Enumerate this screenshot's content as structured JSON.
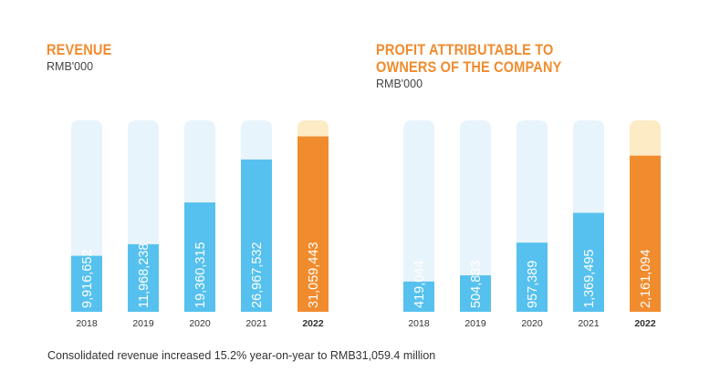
{
  "colors": {
    "title": "#F08C2E",
    "track": "#E8F4FB",
    "bar": "#56C1EE",
    "highlight_bar": "#F08C2E",
    "highlight_track": "#FCEBC5",
    "bar_label": "#FFFFFF",
    "tick": "#333333"
  },
  "chart_data": [
    {
      "type": "bar",
      "title_lines": [
        "REVENUE"
      ],
      "unit": "RMB'000",
      "categories": [
        "2018",
        "2019",
        "2020",
        "2021",
        "2022"
      ],
      "values": [
        9916652,
        11968238,
        19360315,
        26967532,
        31059443
      ],
      "value_labels": [
        "9,916,652",
        "11,968,238",
        "19,360,315",
        "26,967,532",
        "31,059,443"
      ],
      "highlight": "2022",
      "ylim": [
        0,
        33900000
      ]
    },
    {
      "type": "bar",
      "title_lines": [
        "PROFIT ATTRIBUTABLE TO",
        "OWNERS OF THE COMPANY"
      ],
      "unit": "RMB'000",
      "categories": [
        "2018",
        "2019",
        "2020",
        "2021",
        "2022"
      ],
      "values": [
        419044,
        504833,
        957389,
        1369495,
        2161094
      ],
      "value_labels": [
        "419,044",
        "504,833",
        "957,389",
        "1,369,495",
        "2,161,094"
      ],
      "highlight": "2022",
      "ylim": [
        0,
        2650000
      ]
    }
  ],
  "footnote": "Consolidated revenue increased 15.2% year-on-year to RMB31,059.4 million"
}
